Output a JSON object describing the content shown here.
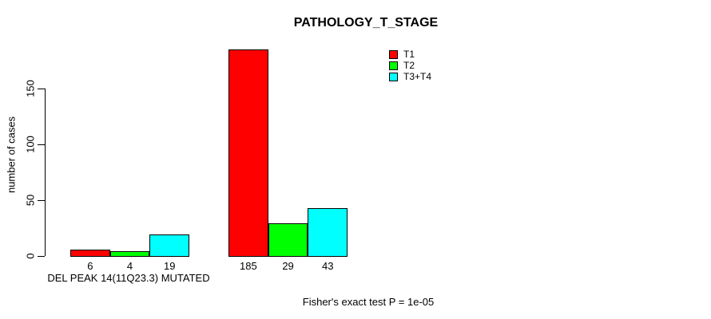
{
  "chart_data": {
    "type": "bar",
    "title": "PATHOLOGY_T_STAGE",
    "ylabel": "number of cases",
    "xlabel": "",
    "yticks": [
      0,
      50,
      100,
      150
    ],
    "ylim": [
      0,
      185
    ],
    "grid": false,
    "series": [
      "T1",
      "T2",
      "T3+T4"
    ],
    "colors": [
      "#FF0000",
      "#00FF00",
      "#00FFFF"
    ],
    "groups": [
      {
        "label": "DEL PEAK 14(11Q23.3) MUTATED",
        "values": [
          6,
          4,
          19
        ]
      },
      {
        "label": "",
        "values": [
          185,
          29,
          43
        ]
      }
    ],
    "legend_position": "top-right",
    "footnote": "Fisher's exact test P = 1e-05"
  }
}
